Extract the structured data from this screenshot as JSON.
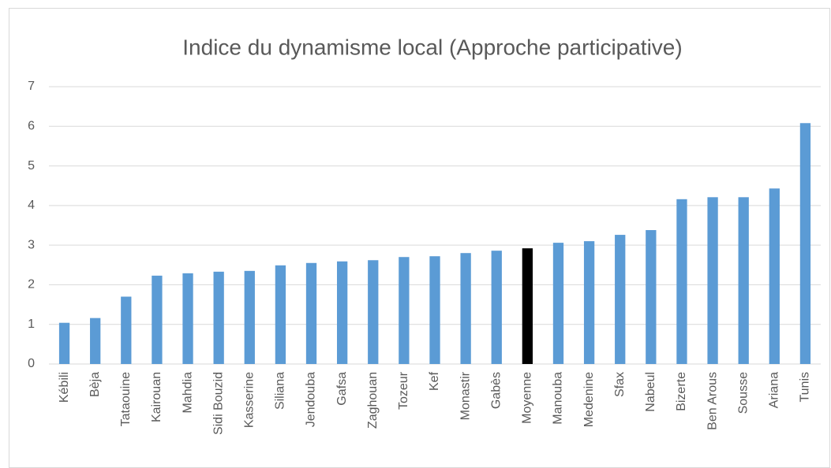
{
  "chart_data": {
    "type": "bar",
    "title": "Indice du dynamisme local (Approche participative)",
    "categories": [
      "Kébili",
      "Bèja",
      "Tataouine",
      "Kairouan",
      "Mahdia",
      "Sidi Bouzid",
      "Kasserine",
      "Siliana",
      "Jendouba",
      "Gafsa",
      "Zaghouan",
      "Tozeur",
      "Kef",
      "Monastir",
      "Gabès",
      "Moyenne",
      "Manouba",
      "Medenine",
      "Sfax",
      "Nabeul",
      "Bizerte",
      "Ben Arous",
      "Sousse",
      "Ariana",
      "Tunis"
    ],
    "values": [
      1.04,
      1.16,
      1.7,
      2.23,
      2.29,
      2.33,
      2.35,
      2.49,
      2.55,
      2.59,
      2.62,
      2.7,
      2.72,
      2.8,
      2.86,
      2.92,
      3.06,
      3.1,
      3.26,
      3.38,
      4.16,
      4.21,
      4.21,
      4.43,
      6.08
    ],
    "colors": [
      "#5b9bd5",
      "#5b9bd5",
      "#5b9bd5",
      "#5b9bd5",
      "#5b9bd5",
      "#5b9bd5",
      "#5b9bd5",
      "#5b9bd5",
      "#5b9bd5",
      "#5b9bd5",
      "#5b9bd5",
      "#5b9bd5",
      "#5b9bd5",
      "#5b9bd5",
      "#5b9bd5",
      "#000000",
      "#5b9bd5",
      "#5b9bd5",
      "#5b9bd5",
      "#5b9bd5",
      "#5b9bd5",
      "#5b9bd5",
      "#5b9bd5",
      "#5b9bd5",
      "#5b9bd5"
    ],
    "ylim": [
      0,
      7
    ],
    "yticks": [
      0,
      1,
      2,
      3,
      4,
      5,
      6,
      7
    ],
    "grid": true
  }
}
